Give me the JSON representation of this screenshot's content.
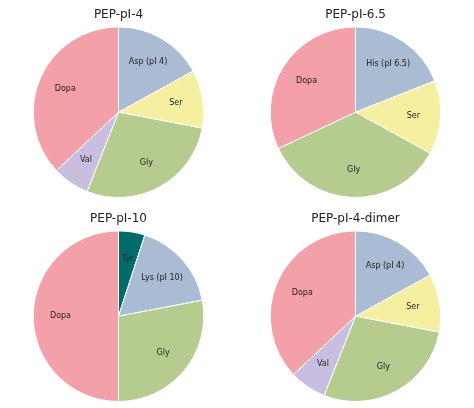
{
  "chart_data": [
    {
      "type": "pie",
      "title": "PEP-pI-4",
      "categories": [
        "Asp (pI 4)",
        "Ser",
        "Gly",
        "Val",
        "Dopa"
      ],
      "values": [
        17,
        11,
        28,
        7,
        37
      ],
      "colors": [
        "#aabbd4",
        "#f5f0a0",
        "#b5cc8e",
        "#c8bfe0",
        "#f4a0a8"
      ]
    },
    {
      "type": "pie",
      "title": "PEP-pI-6.5",
      "categories": [
        "His (pI 6.5)",
        "Ser",
        "Gly",
        "Dopa"
      ],
      "values": [
        19,
        14,
        35,
        32
      ],
      "colors": [
        "#aabbd4",
        "#f5f0a0",
        "#b5cc8e",
        "#f4a0a8"
      ]
    },
    {
      "type": "pie",
      "title": "PEP-pI-10",
      "categories": [
        "Tyr",
        "Lys (pI 10)",
        "Gly",
        "Dopa"
      ],
      "values": [
        5,
        17,
        28,
        50
      ],
      "colors": [
        "#006b6b",
        "#aabbd4",
        "#b5cc8e",
        "#f4a0a8"
      ]
    },
    {
      "type": "pie",
      "title": "PEP-pI-4-dimer",
      "categories": [
        "Asp (pI 4)",
        "Ser",
        "Gly",
        "Val",
        "Dopa"
      ],
      "values": [
        17,
        11,
        28,
        7,
        37
      ],
      "colors": [
        "#aabbd4",
        "#f5f0a0",
        "#b5cc8e",
        "#c8bfe0",
        "#f4a0a8"
      ]
    }
  ]
}
